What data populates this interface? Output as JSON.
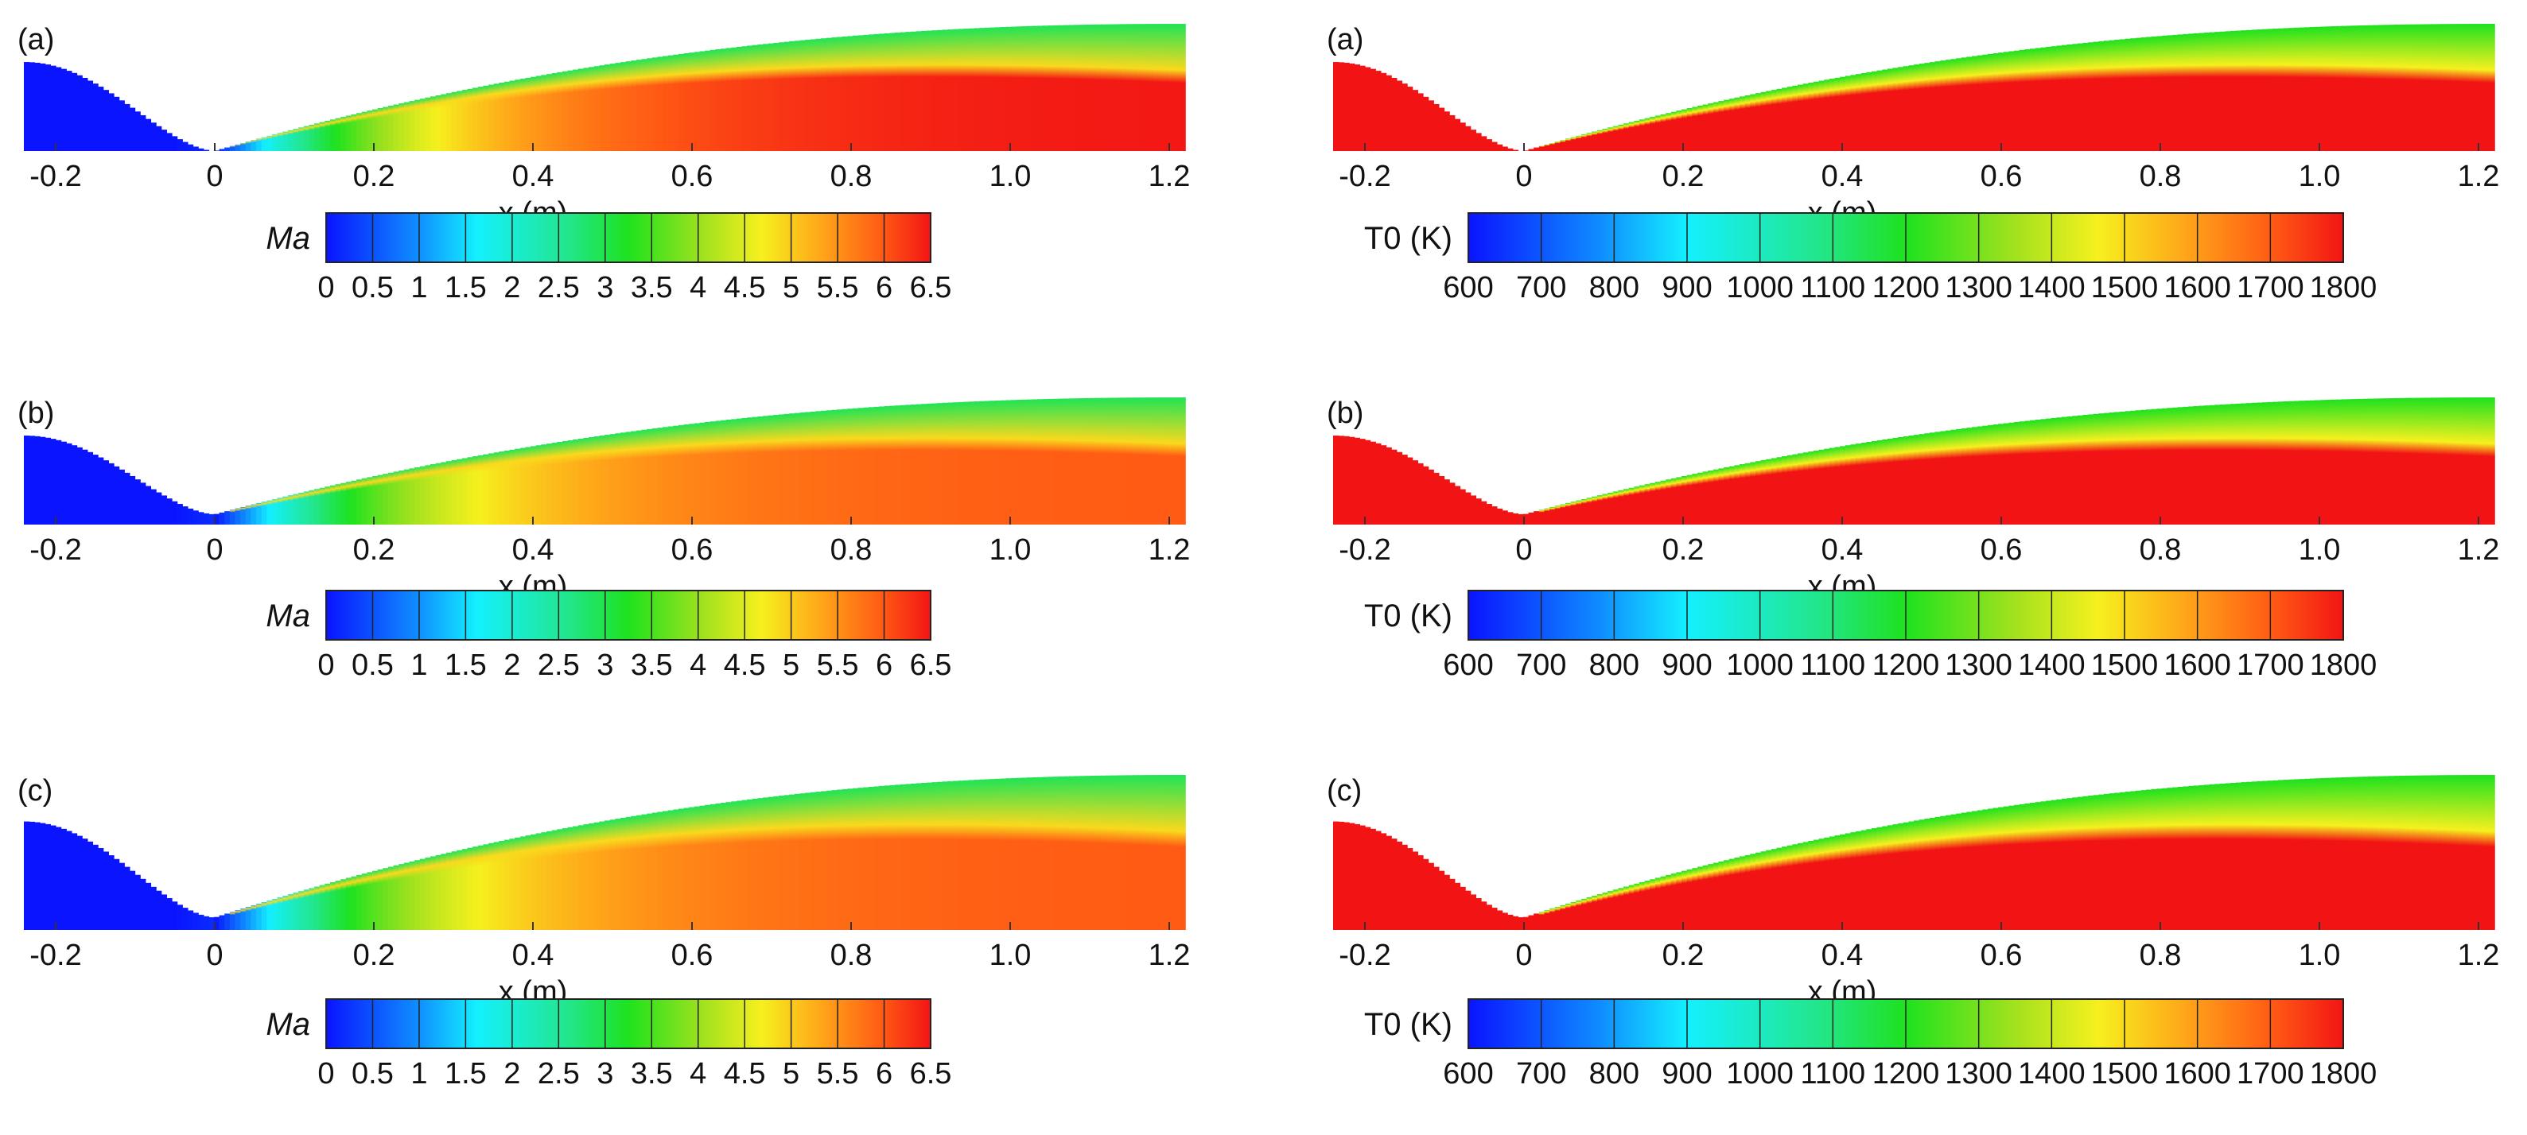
{
  "chart_data": [
    {
      "type": "heatmap",
      "panel_label": "(a)",
      "quantity": "Ma",
      "xlabel": "x (m)",
      "xlim": [
        -0.24,
        1.22
      ],
      "xticks": [
        "-0.2",
        "0",
        "0.2",
        "0.4",
        "0.6",
        "0.8",
        "1.0",
        "1.2"
      ],
      "colorbar": {
        "label": "Ma",
        "range": [
          0,
          6.5
        ],
        "ticks": [
          "0",
          "0.5",
          "1",
          "1.5",
          "2",
          "2.5",
          "3",
          "3.5",
          "4",
          "4.5",
          "5",
          "5.5",
          "6",
          "6.5"
        ]
      },
      "throat_half_height_m": 0.0,
      "core_value_max": 6.5
    },
    {
      "type": "heatmap",
      "panel_label": "(a)",
      "quantity": "T0 (K)",
      "xlabel": "x (m)",
      "xlim": [
        -0.24,
        1.22
      ],
      "xticks": [
        "-0.2",
        "0",
        "0.2",
        "0.4",
        "0.6",
        "0.8",
        "1.0",
        "1.2"
      ],
      "colorbar": {
        "label": "T0 (K)",
        "range": [
          600,
          1800
        ],
        "ticks": [
          "600",
          "700",
          "800",
          "900",
          "1000",
          "1100",
          "1200",
          "1300",
          "1400",
          "1500",
          "1600",
          "1700",
          "1800"
        ]
      },
      "throat_half_height_m": 0.0,
      "core_value_max": 1800
    },
    {
      "type": "heatmap",
      "panel_label": "(b)",
      "quantity": "Ma",
      "xlabel": "x (m)",
      "xlim": [
        -0.24,
        1.22
      ],
      "xticks": [
        "-0.2",
        "0",
        "0.2",
        "0.4",
        "0.6",
        "0.8",
        "1.0",
        "1.2"
      ],
      "colorbar": {
        "label": "Ma",
        "range": [
          0,
          6.5
        ],
        "ticks": [
          "0",
          "0.5",
          "1",
          "1.5",
          "2",
          "2.5",
          "3",
          "3.5",
          "4",
          "4.5",
          "5",
          "5.5",
          "6",
          "6.5"
        ]
      },
      "throat_half_height_m": 0.012,
      "core_value_max": 6.0
    },
    {
      "type": "heatmap",
      "panel_label": "(b)",
      "quantity": "T0 (K)",
      "xlabel": "x (m)",
      "xlim": [
        -0.24,
        1.22
      ],
      "xticks": [
        "-0.2",
        "0",
        "0.2",
        "0.4",
        "0.6",
        "0.8",
        "1.0",
        "1.2"
      ],
      "colorbar": {
        "label": "T0 (K)",
        "range": [
          600,
          1800
        ],
        "ticks": [
          "600",
          "700",
          "800",
          "900",
          "1000",
          "1100",
          "1200",
          "1300",
          "1400",
          "1500",
          "1600",
          "1700",
          "1800"
        ]
      },
      "throat_half_height_m": 0.012,
      "core_value_max": 1800
    },
    {
      "type": "heatmap",
      "panel_label": "(c)",
      "quantity": "Ma",
      "xlabel": "x (m)",
      "xlim": [
        -0.24,
        1.22
      ],
      "xticks": [
        "-0.2",
        "0",
        "0.2",
        "0.4",
        "0.6",
        "0.8",
        "1.0",
        "1.2"
      ],
      "colorbar": {
        "label": "Ma",
        "range": [
          0,
          6.5
        ],
        "ticks": [
          "0",
          "0.5",
          "1",
          "1.5",
          "2",
          "2.5",
          "3",
          "3.5",
          "4",
          "4.5",
          "5",
          "5.5",
          "6",
          "6.5"
        ]
      },
      "throat_half_height_m": 0.012,
      "core_value_max": 6.0
    },
    {
      "type": "heatmap",
      "panel_label": "(c)",
      "quantity": "T0 (K)",
      "xlabel": "x (m)",
      "xlim": [
        -0.24,
        1.22
      ],
      "xticks": [
        "-0.2",
        "0",
        "0.2",
        "0.4",
        "0.6",
        "0.8",
        "1.0",
        "1.2"
      ],
      "colorbar": {
        "label": "T0 (K)",
        "range": [
          600,
          1800
        ],
        "ticks": [
          "600",
          "700",
          "800",
          "900",
          "1000",
          "1100",
          "1200",
          "1300",
          "1400",
          "1500",
          "1600",
          "1700",
          "1800"
        ]
      },
      "throat_half_height_m": 0.012,
      "core_value_max": 1800
    }
  ]
}
